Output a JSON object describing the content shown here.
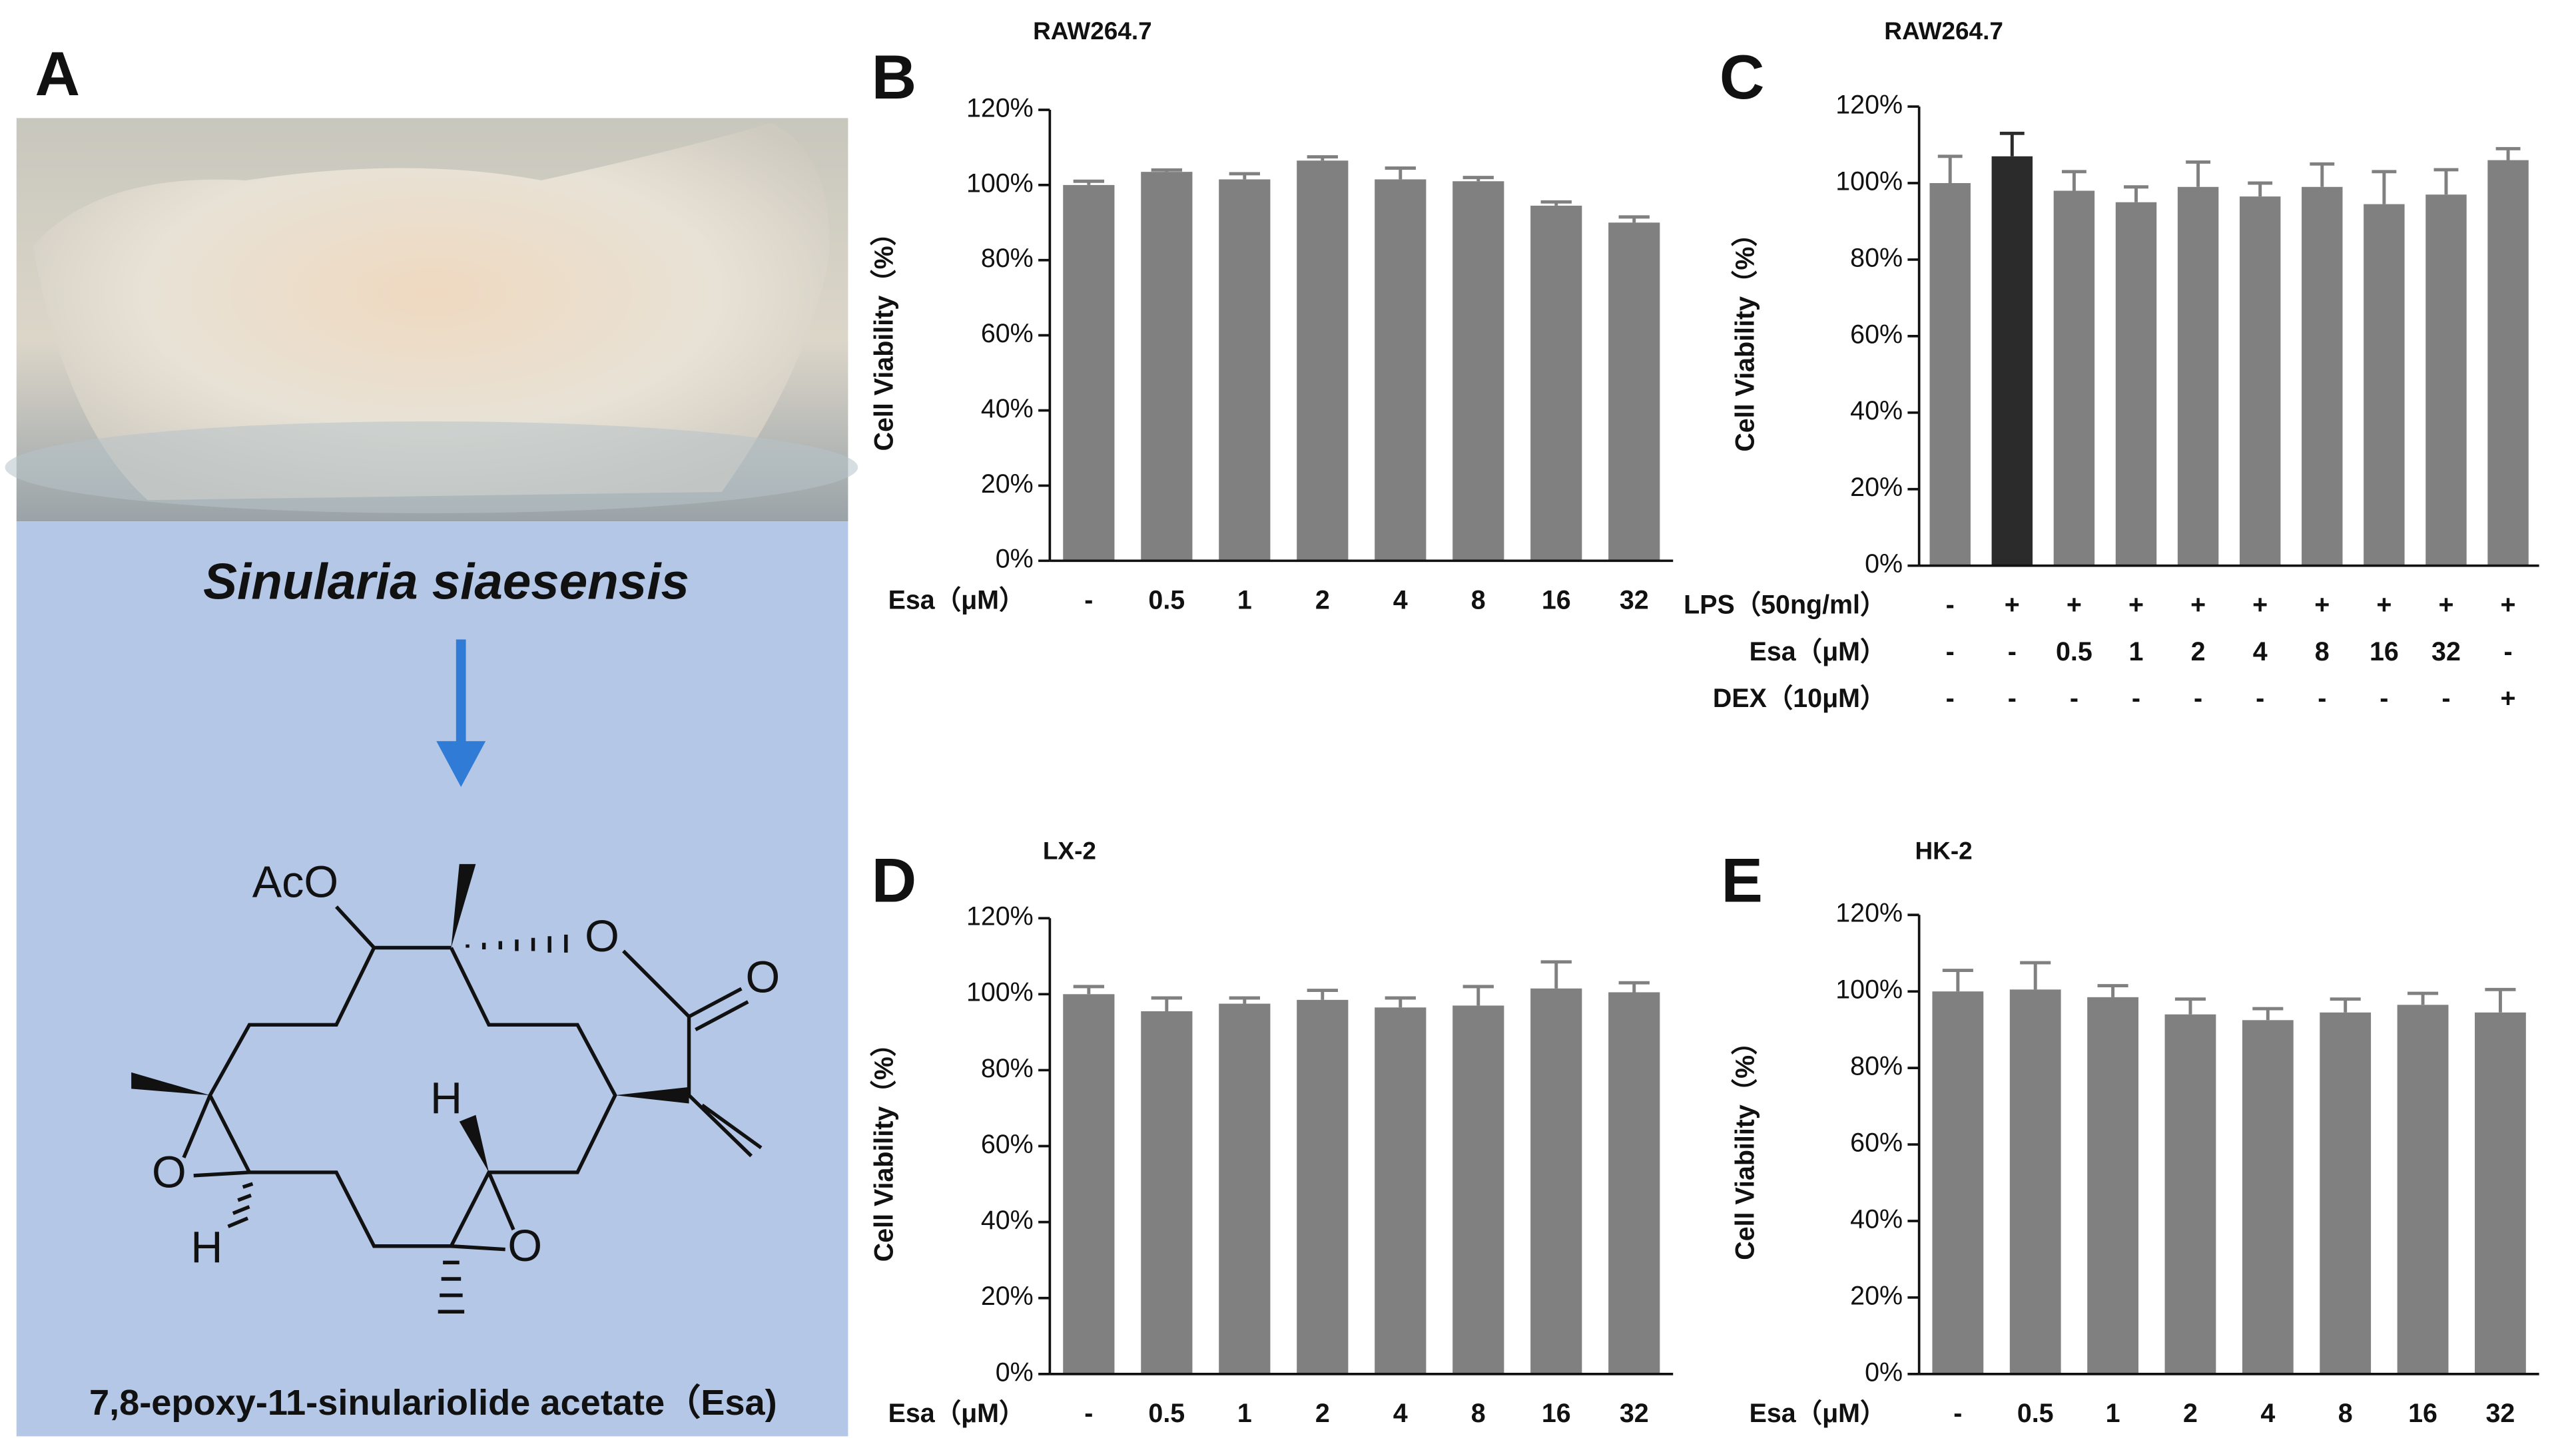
{
  "panel_a": {
    "label": "A",
    "species": "Sinularia siaesensis",
    "compound": "7,8-epoxy-11-sinulariolide acetate（Esa)",
    "atoms": [
      "AcO",
      "O",
      "O",
      "H",
      "O",
      "H",
      "O"
    ]
  },
  "chart_data": [
    {
      "type": "bar",
      "label": "B",
      "title": "RAW264.7",
      "ylabel": "Cell Viability（%）",
      "color": "#808080",
      "rows": [
        {
          "name": "Esa（μM）",
          "labels": [
            "-",
            "0.5",
            "1",
            "2",
            "4",
            "8",
            "16",
            "32"
          ]
        }
      ],
      "values": [
        100,
        103.5,
        101.5,
        106.5,
        101.5,
        101,
        94.5,
        90
      ],
      "errors": [
        1,
        0.5,
        1.5,
        1,
        3,
        1,
        1,
        1.5
      ],
      "ylim": [
        0,
        120
      ],
      "yticks": [
        {
          "value": 0,
          "label": "0%"
        },
        {
          "value": 20,
          "label": "20%"
        },
        {
          "value": 40,
          "label": "40%"
        },
        {
          "value": 60,
          "label": "60%"
        },
        {
          "value": 80,
          "label": "80%"
        },
        {
          "value": 100,
          "label": "100%"
        },
        {
          "value": 120,
          "label": "120%"
        }
      ]
    },
    {
      "type": "bar",
      "label": "C",
      "title": "RAW264.7",
      "ylabel": "Cell Viability（%）",
      "color": "#808080",
      "colors": [
        "#808080",
        "#2b2b2b",
        "#808080",
        "#808080",
        "#808080",
        "#808080",
        "#808080",
        "#808080",
        "#808080",
        "#808080"
      ],
      "rows": [
        {
          "name": "LPS（50ng/ml）",
          "labels": [
            "-",
            "+",
            "+",
            "+",
            "+",
            "+",
            "+",
            "+",
            "+",
            "+"
          ]
        },
        {
          "name": "Esa（μM）",
          "labels": [
            "-",
            "-",
            "0.5",
            "1",
            "2",
            "4",
            "8",
            "16",
            "32",
            "-"
          ]
        },
        {
          "name": "DEX（10μM）",
          "labels": [
            "-",
            "-",
            "-",
            "-",
            "-",
            "-",
            "-",
            "-",
            "-",
            "+"
          ]
        }
      ],
      "values": [
        100,
        107,
        98,
        95,
        99,
        96.5,
        99,
        94.5,
        97,
        106
      ],
      "errors": [
        7,
        6,
        5,
        4,
        6.5,
        3.5,
        6,
        8.5,
        6.5,
        3
      ],
      "ylim": [
        0,
        120
      ],
      "yticks": [
        {
          "value": 0,
          "label": "0%"
        },
        {
          "value": 20,
          "label": "20%"
        },
        {
          "value": 40,
          "label": "40%"
        },
        {
          "value": 60,
          "label": "60%"
        },
        {
          "value": 80,
          "label": "80%"
        },
        {
          "value": 100,
          "label": "100%"
        },
        {
          "value": 120,
          "label": "120%"
        }
      ]
    },
    {
      "type": "bar",
      "label": "D",
      "title": "LX-2",
      "ylabel": "Cell Viability（%）",
      "color": "#808080",
      "rows": [
        {
          "name": "Esa（μM）",
          "labels": [
            "-",
            "0.5",
            "1",
            "2",
            "4",
            "8",
            "16",
            "32"
          ]
        }
      ],
      "values": [
        100,
        95.5,
        97.5,
        98.5,
        96.5,
        97,
        101.5,
        100.5
      ],
      "errors": [
        2,
        3.5,
        1.5,
        2.5,
        2.5,
        5,
        7,
        2.5
      ],
      "ylim": [
        0,
        120
      ],
      "yticks": [
        {
          "value": 0,
          "label": "0%"
        },
        {
          "value": 20,
          "label": "20%"
        },
        {
          "value": 40,
          "label": "40%"
        },
        {
          "value": 60,
          "label": "60%"
        },
        {
          "value": 80,
          "label": "80%"
        },
        {
          "value": 100,
          "label": "100%"
        },
        {
          "value": 120,
          "label": "120%"
        }
      ]
    },
    {
      "type": "bar",
      "label": "E",
      "title": "HK-2",
      "ylabel": "Cell Viability（%）",
      "color": "#808080",
      "rows": [
        {
          "name": "Esa（μM）",
          "labels": [
            "-",
            "0.5",
            "1",
            "2",
            "4",
            "8",
            "16",
            "32"
          ]
        }
      ],
      "values": [
        100,
        100.5,
        98.5,
        94,
        92.5,
        94.5,
        96.5,
        94.5
      ],
      "errors": [
        5.5,
        7,
        3,
        4,
        3,
        3.5,
        3,
        6
      ],
      "ylim": [
        0,
        120
      ],
      "yticks": [
        {
          "value": 0,
          "label": "0%"
        },
        {
          "value": 20,
          "label": "20%"
        },
        {
          "value": 40,
          "label": "40%"
        },
        {
          "value": 60,
          "label": "60%"
        },
        {
          "value": 80,
          "label": "80%"
        },
        {
          "value": 100,
          "label": "100%"
        },
        {
          "value": 120,
          "label": "120%"
        }
      ]
    }
  ]
}
